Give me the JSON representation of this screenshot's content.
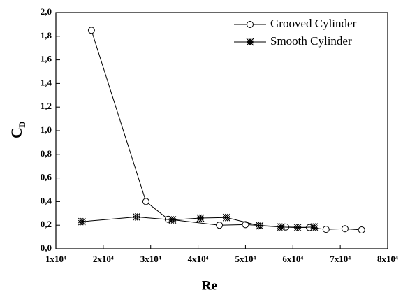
{
  "chart_data": {
    "type": "line",
    "x_label": "Re",
    "y_label": "C",
    "y_label_subscript": "D",
    "xlim": [
      10000,
      80000
    ],
    "xticks": [
      {
        "value": 10000,
        "label": "1x10⁴"
      },
      {
        "value": 20000,
        "label": "2x10⁴"
      },
      {
        "value": 30000,
        "label": "3x10⁴"
      },
      {
        "value": 40000,
        "label": "4x10⁴"
      },
      {
        "value": 50000,
        "label": "5x10⁴"
      },
      {
        "value": 60000,
        "label": "6x10⁴"
      },
      {
        "value": 70000,
        "label": "7x10⁴"
      },
      {
        "value": 80000,
        "label": "8x10⁴"
      }
    ],
    "ylim": [
      0,
      2.0
    ],
    "yticks": [
      {
        "value": 0,
        "label": "0,0"
      },
      {
        "value": 0.2,
        "label": "0,2"
      },
      {
        "value": 0.4,
        "label": "0,4"
      },
      {
        "value": 0.6,
        "label": "0,6"
      },
      {
        "value": 0.8,
        "label": "0,8"
      },
      {
        "value": 1.0,
        "label": "1,0"
      },
      {
        "value": 1.2,
        "label": "1,2"
      },
      {
        "value": 1.4,
        "label": "1,4"
      },
      {
        "value": 1.6,
        "label": "1,6"
      },
      {
        "value": 1.8,
        "label": "1,8"
      },
      {
        "value": 2.0,
        "label": "2,0"
      }
    ],
    "legend": "upper right",
    "series": [
      {
        "name": "Grooved Cylinder",
        "marker": "circle",
        "color": "#000000",
        "x": [
          17500,
          29000,
          33700,
          44500,
          50000,
          58500,
          63500,
          67000,
          71000,
          74500
        ],
        "values": [
          1.85,
          0.4,
          0.25,
          0.2,
          0.205,
          0.185,
          0.18,
          0.165,
          0.17,
          0.16
        ]
      },
      {
        "name": "Smooth Cylinder",
        "marker": "x",
        "color": "#000000",
        "x": [
          15500,
          27000,
          34600,
          40500,
          46000,
          53000,
          57500,
          61000,
          64500
        ],
        "values": [
          0.23,
          0.27,
          0.245,
          0.26,
          0.265,
          0.195,
          0.185,
          0.18,
          0.185
        ]
      }
    ]
  }
}
